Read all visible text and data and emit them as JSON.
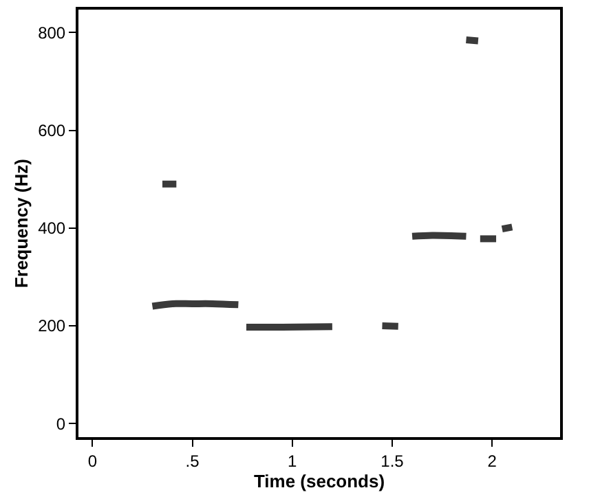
{
  "chart_data": {
    "type": "line",
    "xlabel": "Time (seconds)",
    "ylabel": "Frequency (Hz)",
    "x": [
      0.3,
      0.4,
      0.5,
      0.6,
      0.73,
      null,
      0.77,
      0.95,
      1.2,
      null,
      1.45,
      1.53,
      null,
      1.6,
      1.7,
      1.87,
      null,
      1.94,
      2.02,
      null,
      0.35,
      0.42,
      null,
      1.87,
      1.93,
      null,
      2.05,
      2.1
    ],
    "series": [
      {
        "color": "#3a3a3a",
        "values": [
          240,
          245,
          245,
          245,
          243,
          null,
          197,
          197,
          198,
          null,
          200,
          199,
          null,
          383,
          385,
          383,
          null,
          378,
          378,
          null,
          490,
          490,
          null,
          785,
          783,
          null,
          398,
          402
        ]
      }
    ],
    "xlim": [
      -0.07,
      2.34
    ],
    "ylim": [
      -28,
      847
    ],
    "xticks": [
      0,
      {
        "value": 0.5,
        "label": ".5"
      },
      1,
      1.5,
      2
    ],
    "yticks": [
      0,
      200,
      400,
      600,
      800
    ],
    "line_style": "solid",
    "marker": "none"
  }
}
